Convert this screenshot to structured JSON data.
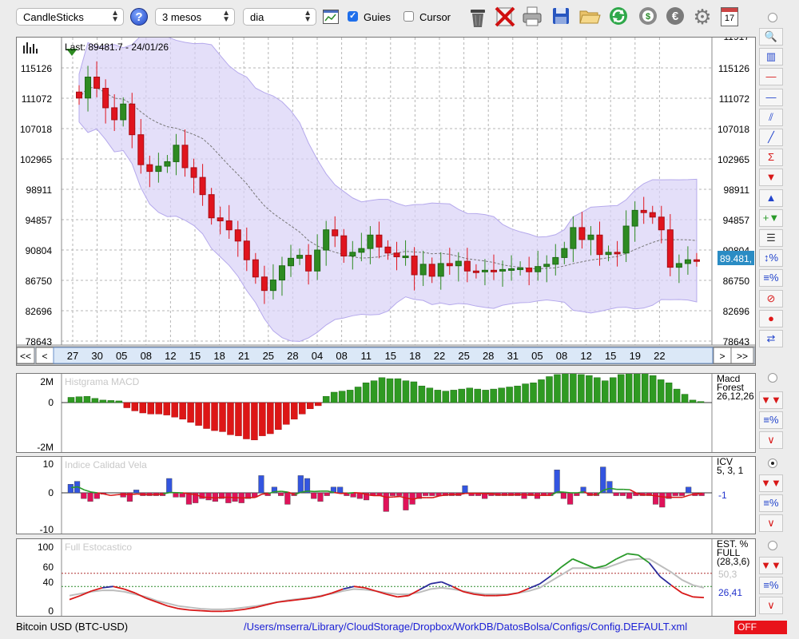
{
  "toolbar": {
    "chart_type": "CandleSticks",
    "period": "3 mesos",
    "interval": "dia",
    "guides_label": "Guies",
    "guides_checked": true,
    "cursor_label": "Cursor",
    "cursor_checked": false,
    "help_icon": "?",
    "calendar_day": "17",
    "icons": [
      "trash-icon",
      "delete-icon",
      "print-icon",
      "save-icon",
      "open-folder-icon",
      "refresh-icon",
      "update-icon",
      "euro-icon",
      "gear-icon",
      "calendar-icon"
    ]
  },
  "price_panel": {
    "last_label": "Last: 89481.7 - 24/01/26",
    "current_price": "89.481,",
    "y_ticks": [
      "115126",
      "111072",
      "107018",
      "102965",
      "98911",
      "94857",
      "90804",
      "86750",
      "82696",
      "78643"
    ],
    "y_max_partial": "11917",
    "x_ticks": [
      "27",
      "30",
      "05",
      "08",
      "12",
      "15",
      "18",
      "21",
      "25",
      "28",
      "04",
      "08",
      "11",
      "15",
      "18",
      "22",
      "25",
      "28",
      "31",
      "05",
      "08",
      "12",
      "15",
      "19",
      "22"
    ],
    "nav_buttons": [
      "<<",
      "<",
      ">",
      ">>"
    ],
    "up_color": "#2e8b22",
    "down_color": "#e0141e",
    "band_color": "#d9d2f7"
  },
  "macd_panel": {
    "title": "Histgrama MACD",
    "y_ticks": [
      "2M",
      "0",
      "-2M"
    ],
    "legend": [
      "Macd",
      "Forest",
      "26,12,26"
    ],
    "values": [
      0.25,
      0.28,
      0.3,
      0.2,
      0.12,
      0.1,
      0.08,
      -0.25,
      -0.4,
      -0.5,
      -0.55,
      -0.55,
      -0.6,
      -0.7,
      -0.8,
      -0.95,
      -1.1,
      -1.25,
      -1.35,
      -1.4,
      -1.55,
      -1.6,
      -1.75,
      -1.8,
      -1.6,
      -1.5,
      -1.3,
      -1.05,
      -0.8,
      -0.55,
      -0.3,
      -0.15,
      0.3,
      0.5,
      0.55,
      0.6,
      0.75,
      0.95,
      1.05,
      1.2,
      1.15,
      1.15,
      1.05,
      1.0,
      0.8,
      0.7,
      0.6,
      0.55,
      0.6,
      0.65,
      0.7,
      0.65,
      0.6,
      0.65,
      0.7,
      0.75,
      0.8,
      0.9,
      0.95,
      1.1,
      1.25,
      1.35,
      1.4,
      1.4,
      1.35,
      1.3,
      1.2,
      1.05,
      1.2,
      1.35,
      1.45,
      1.45,
      1.45,
      1.3,
      1.1,
      0.95,
      0.65,
      0.4,
      0.12,
      0.05
    ]
  },
  "icv_panel": {
    "title": "Indice Calidad Vela",
    "y_ticks": [
      "10",
      "0",
      "-10"
    ],
    "legend": [
      "ICV",
      "5, 3, 1"
    ],
    "current": "-1",
    "values": [
      3,
      4,
      -2,
      -3,
      -2,
      -0.5,
      0,
      0,
      -1.5,
      -3,
      1,
      -1,
      -1,
      -1,
      -1,
      5,
      -1.5,
      -1.5,
      -4,
      -3.5,
      -2,
      -2.5,
      -3,
      -2,
      -3.5,
      -3,
      -3.5,
      -2,
      -1.5,
      6,
      -1,
      2,
      -1,
      -4,
      -1,
      6,
      5,
      -2,
      -3,
      -1,
      2,
      2,
      -1,
      -1.5,
      -2,
      -2.5,
      -1,
      -1,
      -6.5,
      -1,
      -1,
      -6,
      -4,
      -2,
      -1,
      -1,
      -1,
      -1,
      -1,
      -1,
      2.5,
      -1,
      -1,
      -2,
      -1,
      -1,
      -1,
      -1,
      -1,
      -2,
      -1,
      -2,
      -1,
      -1,
      8,
      -2,
      -4,
      -1,
      2,
      -1,
      -1,
      9,
      4,
      -1,
      -1,
      -2,
      -1,
      -1,
      -1,
      -4,
      -5,
      -2,
      -1,
      -1,
      2,
      -1,
      -1
    ]
  },
  "stoch_panel": {
    "title": "Full Estocastico",
    "y_ticks": [
      "100",
      "60",
      "40",
      "0"
    ],
    "legend": [
      "EST. %",
      "FULL",
      "(28,3,6)"
    ],
    "value_1": "50,3",
    "value_2": "26,41"
  },
  "status_bar": {
    "symbol": "Bitcoin USD (BTC-USD)",
    "config_path": "/Users/mserra/Library/CloudStorage/Dropbox/WorkDB/DatosBolsa/Configs/Config.DEFAULT.xml",
    "off_label": "OFF",
    "off_color": "#e8131b"
  },
  "right_tools": [
    "magnifier-icon",
    "chart-type-icon",
    "horizontal-line-red-icon",
    "horizontal-line-blue-icon",
    "channel-icon",
    "trend-line-icon",
    "sigma-line-icon",
    "arrow-down-icon",
    "arrow-up-icon",
    "add-arrows-icon",
    "grid-lines-icon",
    "percent-zoom-icon",
    "percent-lines-icon",
    "stop-icon",
    "record-icon",
    "swap-icon"
  ]
}
